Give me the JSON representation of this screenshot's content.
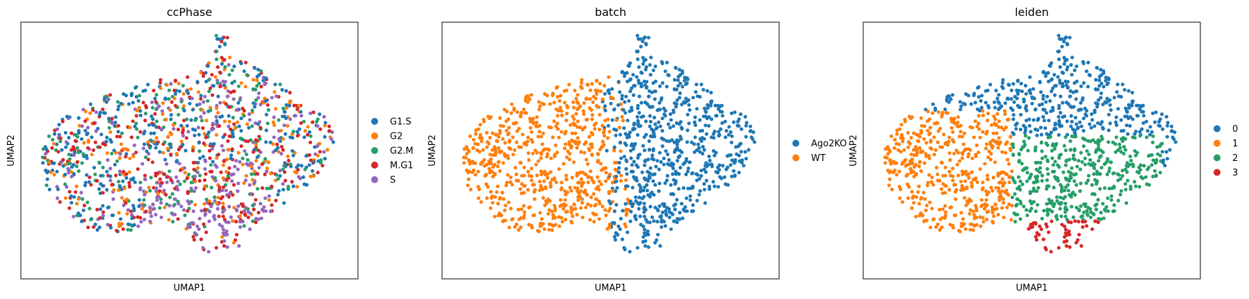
{
  "colors": {
    "tab_blue": "#1f77b4",
    "tab_orange": "#ff7f0e",
    "tab_green": "#279e68",
    "tab_red": "#d62728",
    "tab_purple": "#9467bd"
  },
  "chart_data": [
    {
      "type": "scatter",
      "title": "ccPhase",
      "xlabel": "UMAP1",
      "ylabel": "UMAP2",
      "ticks": "none",
      "legend_position": "right",
      "categories": [
        "G1.S",
        "G2",
        "G2.M",
        "M.G1",
        "S"
      ],
      "category_colors": [
        "#1f77b4",
        "#ff7f0e",
        "#279e68",
        "#d62728",
        "#9467bd"
      ],
      "description_of_points": "approx. 1500 cells spread over one cloud, all phases intermixed; S phase denser near lower centre"
    },
    {
      "type": "scatter",
      "title": "batch",
      "xlabel": "UMAP1",
      "ylabel": "UMAP2",
      "ticks": "none",
      "legend_position": "right",
      "categories": [
        "Ago2KO",
        "WT"
      ],
      "category_colors": [
        "#1f77b4",
        "#ff7f0e"
      ]
    },
    {
      "type": "scatter",
      "title": "leiden",
      "xlabel": "UMAP1",
      "ylabel": "UMAP2",
      "ticks": "none",
      "legend_position": "right",
      "categories": [
        "0",
        "1",
        "2",
        "3"
      ],
      "category_colors": [
        "#1f77b4",
        "#ff7f0e",
        "#279e68",
        "#d62728"
      ]
    }
  ]
}
